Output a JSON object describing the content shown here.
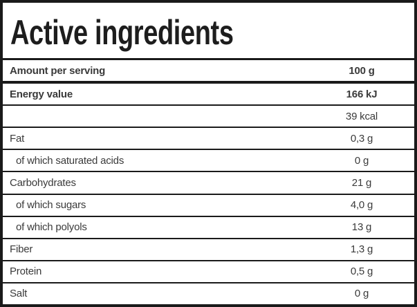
{
  "header": {
    "title": "Active ingredients"
  },
  "table": {
    "rows": [
      {
        "label": "Amount per serving",
        "value": "100 g",
        "bold": true,
        "indent": false,
        "divider_below": "thick"
      },
      {
        "label": "Energy value",
        "value": "166 kJ",
        "bold": true,
        "indent": false,
        "divider_below": "normal"
      },
      {
        "label": "",
        "value": "39 kcal",
        "bold": false,
        "indent": false,
        "divider_below": "normal"
      },
      {
        "label": "Fat",
        "value": "0,3 g",
        "bold": false,
        "indent": false,
        "divider_below": "normal"
      },
      {
        "label": "of which saturated acids",
        "value": "0 g",
        "bold": false,
        "indent": true,
        "divider_below": "normal"
      },
      {
        "label": "Carbohydrates",
        "value": "21 g",
        "bold": false,
        "indent": false,
        "divider_below": "normal"
      },
      {
        "label": "of which sugars",
        "value": "4,0 g",
        "bold": false,
        "indent": true,
        "divider_below": "normal"
      },
      {
        "label": "of which polyols",
        "value": "13 g",
        "bold": false,
        "indent": true,
        "divider_below": "normal"
      },
      {
        "label": "Fiber",
        "value": "1,3 g",
        "bold": false,
        "indent": false,
        "divider_below": "normal"
      },
      {
        "label": "Protein",
        "value": "0,5 g",
        "bold": false,
        "indent": false,
        "divider_below": "normal"
      },
      {
        "label": "Salt",
        "value": "0 g",
        "bold": false,
        "indent": false,
        "divider_below": "none"
      }
    ]
  },
  "colors": {
    "border": "#1a1a1a",
    "text": "#3a3a3a",
    "header_text": "#1d1d1d",
    "background": "#ffffff"
  }
}
